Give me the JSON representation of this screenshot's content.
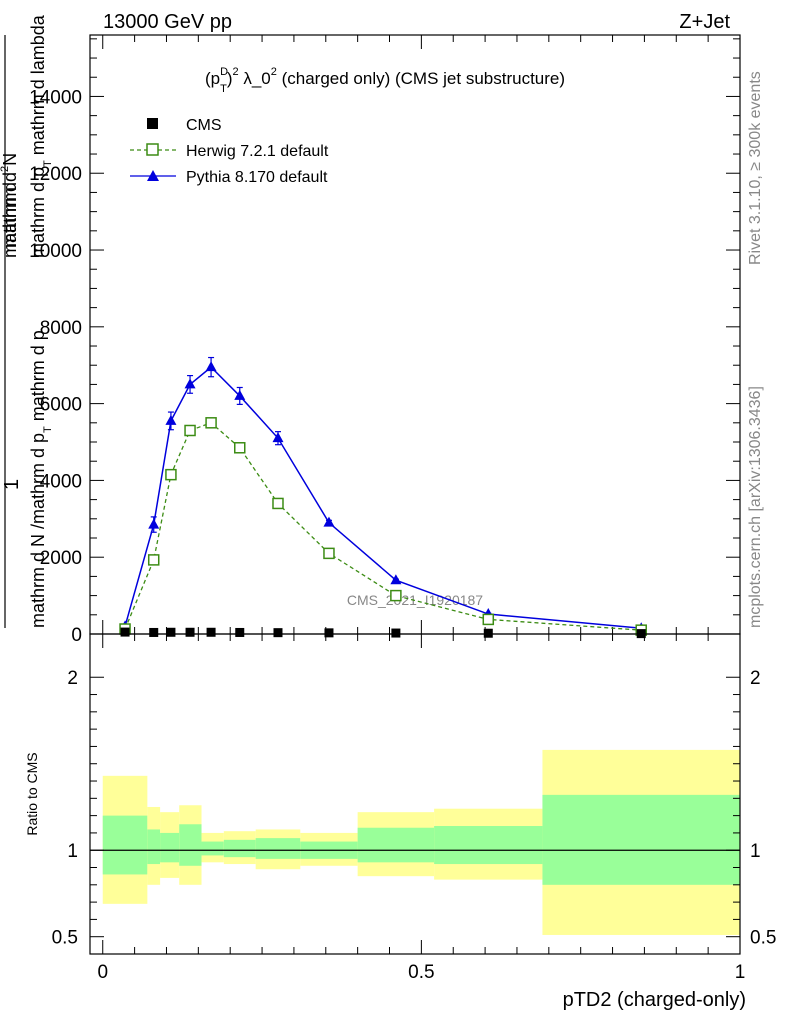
{
  "header": {
    "left": "13000 GeV pp",
    "right": "Z+Jet"
  },
  "side_labels": {
    "rivet": "Rivet 3.1.10, ≥ 300k events",
    "mcplots": "mcplots.cern.ch [arXiv:1306.3436]"
  },
  "watermark": "CMS_2021_I1920187",
  "chart_data": [
    {
      "type": "line",
      "panel": "main",
      "title_parts": {
        "p": "(p",
        "sup_D": "D",
        "sub_T": "T",
        "rest_a": ")",
        "sup_2a": "2",
        "mid": " λ_0",
        "sup_2b": "2",
        "tail": " (charged only) (CMS jet substructure)"
      },
      "ylabel_parts": {
        "one": "1",
        "den1": "mathrm d N /mathrm d p",
        "den1_sub": "T",
        "den1_rest": " mathrm d p",
        "num_top": "mathrm d",
        "num2": "mathrm d",
        "num2_sup": "2",
        "num2_rest": "N",
        "den2": "mathrm d p",
        "den2_sub": "T",
        "den2_rest": " mathrm d lambda"
      },
      "ylim": [
        0,
        15600
      ],
      "yticks": [
        0,
        2000,
        4000,
        6000,
        8000,
        10000,
        12000,
        14000
      ],
      "ytick_labels": [
        "0",
        "2000",
        "4000",
        "6000",
        "8000",
        "10000",
        "12000",
        "14000"
      ],
      "xlim": [
        -0.02,
        1.0
      ],
      "legend": [
        {
          "label": "CMS",
          "marker": "square-filled",
          "color": "#000000"
        },
        {
          "label": "Herwig 7.2.1 default",
          "marker": "square-open",
          "color": "#3c8c14",
          "dashed": true
        },
        {
          "label": "Pythia 8.170 default",
          "marker": "triangle",
          "color": "#0000dd"
        }
      ],
      "series": [
        {
          "name": "CMS",
          "color": "#000000",
          "x": [
            0.035,
            0.08,
            0.107,
            0.137,
            0.17,
            0.215,
            0.275,
            0.355,
            0.46,
            0.605,
            0.845
          ],
          "y": [
            50,
            40,
            45,
            45,
            45,
            40,
            35,
            30,
            25,
            20,
            10
          ]
        },
        {
          "name": "Herwig 7.2.1 default",
          "color": "#3c8c14",
          "x": [
            0.035,
            0.08,
            0.107,
            0.137,
            0.17,
            0.215,
            0.275,
            0.355,
            0.46,
            0.605,
            0.845
          ],
          "y": [
            130,
            1930,
            4150,
            5300,
            5500,
            4850,
            3400,
            2100,
            1000,
            380,
            100
          ]
        },
        {
          "name": "Pythia 8.170 default",
          "color": "#0000dd",
          "x": [
            0.035,
            0.08,
            0.107,
            0.137,
            0.17,
            0.215,
            0.275,
            0.355,
            0.46,
            0.605,
            0.845
          ],
          "y": [
            200,
            2850,
            5550,
            6500,
            6950,
            6200,
            5100,
            2900,
            1400,
            520,
            150
          ],
          "err": [
            20,
            200,
            230,
            230,
            250,
            220,
            170,
            60,
            30,
            20,
            10
          ]
        }
      ]
    },
    {
      "type": "area",
      "panel": "ratio",
      "ylabel": "Ratio to CMS",
      "ylim": [
        0.4,
        2.25
      ],
      "yticks": [
        0.5,
        1,
        2
      ],
      "ytick_labels": [
        "0.5",
        "1",
        "2"
      ],
      "xlim": [
        -0.02,
        1.0
      ],
      "xticks": [
        0,
        0.5,
        1
      ],
      "xtick_labels": [
        "0",
        "0.5",
        "1"
      ],
      "xlabel": "pTD2 (charged-only)",
      "reference_line": 1,
      "bands": [
        {
          "x0": 0.0,
          "x1": 0.07,
          "yellow": [
            0.69,
            1.43
          ],
          "green": [
            0.86,
            1.2
          ]
        },
        {
          "x0": 0.07,
          "x1": 0.09,
          "yellow": [
            0.8,
            1.25
          ],
          "green": [
            0.92,
            1.12
          ]
        },
        {
          "x0": 0.09,
          "x1": 0.12,
          "yellow": [
            0.84,
            1.22
          ],
          "green": [
            0.93,
            1.1
          ]
        },
        {
          "x0": 0.12,
          "x1": 0.155,
          "yellow": [
            0.8,
            1.26
          ],
          "green": [
            0.91,
            1.15
          ]
        },
        {
          "x0": 0.155,
          "x1": 0.19,
          "yellow": [
            0.93,
            1.1
          ],
          "green": [
            0.97,
            1.05
          ]
        },
        {
          "x0": 0.19,
          "x1": 0.24,
          "yellow": [
            0.92,
            1.11
          ],
          "green": [
            0.96,
            1.06
          ]
        },
        {
          "x0": 0.24,
          "x1": 0.31,
          "yellow": [
            0.89,
            1.12
          ],
          "green": [
            0.95,
            1.07
          ]
        },
        {
          "x0": 0.31,
          "x1": 0.4,
          "yellow": [
            0.91,
            1.1
          ],
          "green": [
            0.95,
            1.05
          ]
        },
        {
          "x0": 0.4,
          "x1": 0.52,
          "yellow": [
            0.85,
            1.22
          ],
          "green": [
            0.93,
            1.13
          ]
        },
        {
          "x0": 0.52,
          "x1": 0.69,
          "yellow": [
            0.83,
            1.24
          ],
          "green": [
            0.92,
            1.14
          ]
        },
        {
          "x0": 0.69,
          "x1": 1.0,
          "yellow": [
            0.51,
            1.58
          ],
          "green": [
            0.8,
            1.32
          ]
        }
      ]
    }
  ]
}
